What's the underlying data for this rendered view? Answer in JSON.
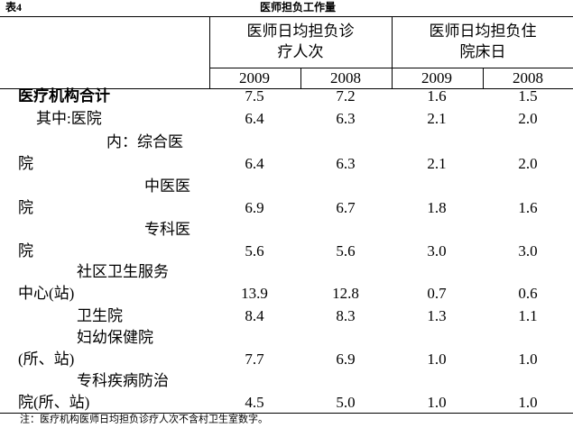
{
  "header": {
    "label": "表4",
    "title": "医师担负工作量"
  },
  "table": {
    "groups": [
      [
        "医师日均担负诊",
        "疗人次"
      ],
      [
        "医师日均担负住",
        "院床日"
      ]
    ],
    "years": [
      "2009",
      "2008",
      "2009",
      "2008"
    ],
    "rows": [
      {
        "label": [
          "医疗机构合计"
        ],
        "values": [
          "7.5",
          "7.2",
          "1.6",
          "1.5"
        ],
        "bold": true
      },
      {
        "label": [
          "其中:医院"
        ],
        "values": [
          "6.4",
          "6.3",
          "2.1",
          "2.0"
        ]
      },
      {
        "label": [
          "内：综合医",
          "院"
        ],
        "values": [
          "6.4",
          "6.3",
          "2.1",
          "2.0"
        ]
      },
      {
        "label": [
          "中医医",
          "院"
        ],
        "values": [
          "6.9",
          "6.7",
          "1.8",
          "1.6"
        ]
      },
      {
        "label": [
          "专科医",
          "院"
        ],
        "values": [
          "5.6",
          "5.6",
          "3.0",
          "3.0"
        ]
      },
      {
        "label": [
          "社区卫生服务",
          "中心(站)"
        ],
        "values": [
          "13.9",
          "12.8",
          "0.7",
          "0.6"
        ]
      },
      {
        "label": [
          "卫生院"
        ],
        "values": [
          "8.4",
          "8.3",
          "1.3",
          "1.1"
        ]
      },
      {
        "label": [
          "妇幼保健院",
          "(所、站)"
        ],
        "values": [
          "7.7",
          "6.9",
          "1.0",
          "1.0"
        ]
      },
      {
        "label": [
          "专科疾病防治",
          "院(所、站)"
        ],
        "values": [
          "4.5",
          "5.0",
          "1.0",
          "1.0"
        ]
      }
    ]
  },
  "note": "注：医疗机构医师日均担负诊疗人次不含村卫生室数字。"
}
